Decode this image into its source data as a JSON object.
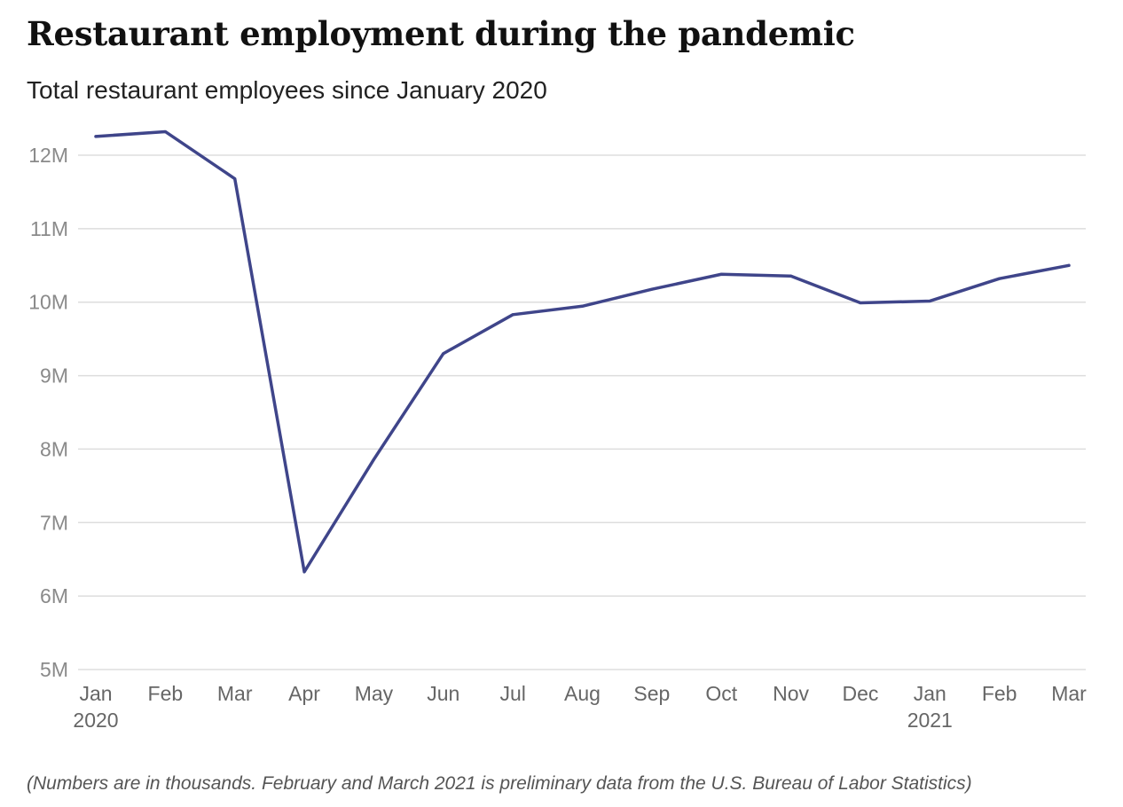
{
  "header": {
    "title": "Restaurant employment during the pandemic",
    "subtitle": "Total restaurant employees since January 2020"
  },
  "footnote": "(Numbers are in thousands. February and March 2021 is preliminary data from the U.S. Bureau of Labor Statistics)",
  "colors": {
    "line": "#3f458a",
    "grid": "#dddddd",
    "tick_text": "#8a8a8a",
    "x_text": "#666666"
  },
  "chart_data": {
    "type": "line",
    "title": "Restaurant employment during the pandemic",
    "subtitle": "Total restaurant employees since January 2020",
    "xlabel": "",
    "ylabel": "",
    "categories": [
      "Jan",
      "Feb",
      "Mar",
      "Apr",
      "May",
      "Jun",
      "Jul",
      "Aug",
      "Sep",
      "Oct",
      "Nov",
      "Dec",
      "Jan",
      "Feb",
      "Mar"
    ],
    "year_labels": [
      {
        "index": 0,
        "label": "2020"
      },
      {
        "index": 12,
        "label": "2021"
      }
    ],
    "series": [
      {
        "values": [
          12255,
          12320,
          11680,
          6330,
          7860,
          9300,
          9830,
          9945,
          10175,
          10380,
          10355,
          9990,
          10015,
          10320,
          10500
        ]
      }
    ],
    "ylim": [
      5000,
      12000
    ],
    "yticks": [
      5000,
      6000,
      7000,
      8000,
      9000,
      10000,
      11000,
      12000
    ],
    "ytick_labels": [
      "5M",
      "6M",
      "7M",
      "8M",
      "9M",
      "10M",
      "11M",
      "12M"
    ],
    "grid": true,
    "legend": "none"
  }
}
